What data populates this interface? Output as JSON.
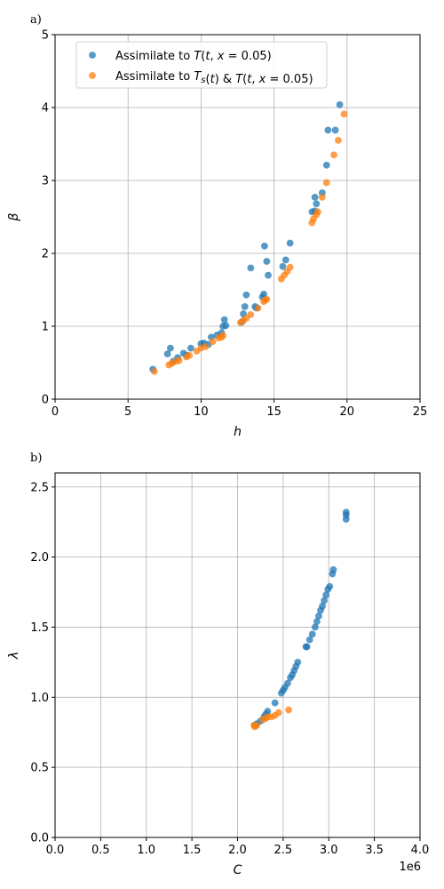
{
  "colors": {
    "blue": "#1f77b4",
    "orange": "#ff7f0e",
    "grid": "#b0b0b0"
  },
  "chart_data": [
    {
      "type": "scatter",
      "panel_label": "a)",
      "xlabel": "h",
      "ylabel": "β",
      "xlim": [
        0,
        25
      ],
      "ylim": [
        0,
        5
      ],
      "xticks": [
        0,
        5,
        10,
        15,
        20,
        25
      ],
      "xtick_labels": [
        "0",
        "5",
        "10",
        "15",
        "20",
        "25"
      ],
      "yticks": [
        0,
        1,
        2,
        3,
        4,
        5
      ],
      "ytick_labels": [
        "0",
        "1",
        "2",
        "3",
        "4",
        "5"
      ],
      "grid": true,
      "legend_placement": "upper-left",
      "series": [
        {
          "name": "Assimilate to T(t, x = 0.05)",
          "color": "blue",
          "points": [
            [
              6.7,
              0.41
            ],
            [
              7.7,
              0.62
            ],
            [
              7.9,
              0.7
            ],
            [
              8.1,
              0.52
            ],
            [
              8.4,
              0.57
            ],
            [
              8.8,
              0.63
            ],
            [
              9.0,
              0.6
            ],
            [
              9.3,
              0.7
            ],
            [
              10.0,
              0.76
            ],
            [
              10.2,
              0.77
            ],
            [
              10.5,
              0.75
            ],
            [
              10.7,
              0.85
            ],
            [
              11.1,
              0.88
            ],
            [
              11.4,
              0.91
            ],
            [
              11.5,
              1.0
            ],
            [
              11.6,
              1.09
            ],
            [
              11.7,
              1.01
            ],
            [
              12.8,
              1.06
            ],
            [
              12.9,
              1.17
            ],
            [
              13.0,
              1.27
            ],
            [
              13.1,
              1.43
            ],
            [
              13.4,
              1.8
            ],
            [
              13.7,
              1.27
            ],
            [
              13.8,
              1.25
            ],
            [
              14.2,
              1.4
            ],
            [
              14.3,
              1.44
            ],
            [
              14.35,
              2.1
            ],
            [
              14.5,
              1.89
            ],
            [
              14.6,
              1.7
            ],
            [
              15.6,
              1.82
            ],
            [
              15.8,
              1.91
            ],
            [
              16.1,
              2.14
            ],
            [
              17.6,
              2.57
            ],
            [
              17.8,
              2.58
            ],
            [
              17.8,
              2.77
            ],
            [
              17.9,
              2.68
            ],
            [
              18.3,
              2.83
            ],
            [
              18.6,
              3.21
            ],
            [
              18.7,
              3.69
            ],
            [
              19.2,
              3.69
            ],
            [
              19.5,
              4.04
            ]
          ]
        },
        {
          "name": "Assimilate to Tₛ(t) & T(t, x = 0.05)",
          "color": "orange",
          "points": [
            [
              6.8,
              0.38
            ],
            [
              7.8,
              0.47
            ],
            [
              8.0,
              0.49
            ],
            [
              8.3,
              0.52
            ],
            [
              8.5,
              0.53
            ],
            [
              9.0,
              0.58
            ],
            [
              9.2,
              0.6
            ],
            [
              9.7,
              0.66
            ],
            [
              10.0,
              0.7
            ],
            [
              10.3,
              0.72
            ],
            [
              10.8,
              0.79
            ],
            [
              11.2,
              0.84
            ],
            [
              11.4,
              0.85
            ],
            [
              11.5,
              0.87
            ],
            [
              12.7,
              1.05
            ],
            [
              12.9,
              1.08
            ],
            [
              13.1,
              1.11
            ],
            [
              13.4,
              1.16
            ],
            [
              13.9,
              1.25
            ],
            [
              14.3,
              1.34
            ],
            [
              14.4,
              1.36
            ],
            [
              14.5,
              1.37
            ],
            [
              15.5,
              1.65
            ],
            [
              15.7,
              1.7
            ],
            [
              15.9,
              1.75
            ],
            [
              16.1,
              1.81
            ],
            [
              17.6,
              2.42
            ],
            [
              17.7,
              2.47
            ],
            [
              17.9,
              2.53
            ],
            [
              18.0,
              2.57
            ],
            [
              18.3,
              2.77
            ],
            [
              18.6,
              2.97
            ],
            [
              19.1,
              3.35
            ],
            [
              19.4,
              3.55
            ],
            [
              19.8,
              3.91
            ]
          ]
        }
      ]
    },
    {
      "type": "scatter",
      "panel_label": "b)",
      "xlabel": "C",
      "ylabel": "λ",
      "x_offset_label": "1e6",
      "xlim": [
        0,
        4
      ],
      "ylim": [
        0,
        2.6
      ],
      "xticks": [
        0,
        0.5,
        1.0,
        1.5,
        2.0,
        2.5,
        3.0,
        3.5,
        4.0
      ],
      "xtick_labels": [
        "0.0",
        "0.5",
        "1.0",
        "1.5",
        "2.0",
        "2.5",
        "3.0",
        "3.5",
        "4.0"
      ],
      "yticks": [
        0,
        0.5,
        1.0,
        1.5,
        2.0,
        2.5
      ],
      "ytick_labels": [
        "0.0",
        "0.5",
        "1.0",
        "1.5",
        "2.0",
        "2.5"
      ],
      "grid": true,
      "series": [
        {
          "name": "",
          "color": "blue",
          "points": [
            [
              2.19,
              0.8
            ],
            [
              2.21,
              0.81
            ],
            [
              2.25,
              0.83
            ],
            [
              2.29,
              0.86
            ],
            [
              2.31,
              0.88
            ],
            [
              2.33,
              0.9
            ],
            [
              2.41,
              0.96
            ],
            [
              2.48,
              1.03
            ],
            [
              2.5,
              1.05
            ],
            [
              2.52,
              1.07
            ],
            [
              2.55,
              1.1
            ],
            [
              2.58,
              1.14
            ],
            [
              2.6,
              1.16
            ],
            [
              2.62,
              1.19
            ],
            [
              2.64,
              1.22
            ],
            [
              2.66,
              1.25
            ],
            [
              2.75,
              1.36
            ],
            [
              2.76,
              1.36
            ],
            [
              2.79,
              1.41
            ],
            [
              2.82,
              1.45
            ],
            [
              2.85,
              1.5
            ],
            [
              2.87,
              1.54
            ],
            [
              2.89,
              1.58
            ],
            [
              2.91,
              1.62
            ],
            [
              2.93,
              1.65
            ],
            [
              2.95,
              1.69
            ],
            [
              2.97,
              1.73
            ],
            [
              2.99,
              1.77
            ],
            [
              3.01,
              1.79
            ],
            [
              3.04,
              1.88
            ],
            [
              3.05,
              1.91
            ],
            [
              3.19,
              2.27
            ],
            [
              3.19,
              2.3
            ],
            [
              3.19,
              2.32
            ]
          ]
        },
        {
          "name": "",
          "color": "orange",
          "points": [
            [
              2.18,
              0.8
            ],
            [
              2.19,
              0.79
            ],
            [
              2.21,
              0.8
            ],
            [
              2.28,
              0.84
            ],
            [
              2.31,
              0.85
            ],
            [
              2.33,
              0.86
            ],
            [
              2.37,
              0.86
            ],
            [
              2.41,
              0.87
            ],
            [
              2.45,
              0.89
            ],
            [
              2.56,
              0.91
            ]
          ]
        }
      ]
    }
  ]
}
